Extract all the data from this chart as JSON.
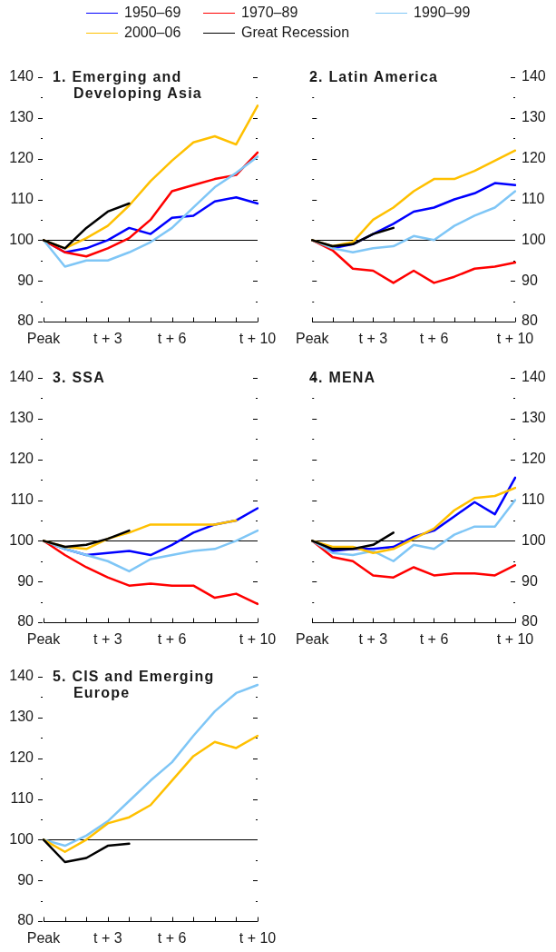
{
  "chart_data": [
    {
      "type": "line",
      "title": "1. Emerging and Developing Asia",
      "categories": [
        "Peak",
        null,
        null,
        "t + 3",
        null,
        null,
        "t + 6",
        null,
        null,
        null,
        "t + 10"
      ],
      "ylim": [
        80,
        140
      ],
      "yticks": [
        80,
        {
          "value": 85,
          "label": null
        },
        90,
        {
          "value": 95,
          "label": null
        },
        100,
        {
          "value": 105,
          "label": null
        },
        110,
        {
          "value": 115,
          "label": null
        },
        120,
        {
          "value": 125,
          "label": null
        },
        130,
        {
          "value": 135,
          "label": null
        },
        140
      ],
      "ref_lines": [
        {
          "axis": "y",
          "value": 100
        }
      ],
      "legend": "top",
      "series": [
        {
          "name": "1950–69",
          "color": "#0000ff",
          "values": [
            100,
            97,
            98,
            100,
            103,
            101.5,
            105.5,
            106,
            109.5,
            110.5,
            109
          ]
        },
        {
          "name": "1970–89",
          "color": "#ff0000",
          "values": [
            100,
            97,
            96,
            98,
            100.5,
            105,
            112,
            113.5,
            115,
            116,
            121.5
          ]
        },
        {
          "name": "1990–99",
          "color": "#7fc6f6",
          "values": [
            100,
            93.5,
            95,
            95,
            97,
            99.5,
            103,
            108,
            113,
            116.5,
            120.5
          ]
        },
        {
          "name": "2000–06",
          "color": "#ffc000",
          "values": [
            100,
            98,
            100.5,
            103.5,
            108.5,
            114.5,
            119.5,
            124,
            125.5,
            123.5,
            133
          ]
        },
        {
          "name": "Great Recession",
          "color": "#000000",
          "values": [
            100,
            98,
            103,
            107,
            109,
            null,
            null,
            null,
            null,
            null,
            null
          ]
        }
      ]
    },
    {
      "type": "line",
      "title": "2. Latin America",
      "categories": [
        "Peak",
        null,
        null,
        "t + 3",
        null,
        null,
        "t + 6",
        null,
        null,
        null,
        "t + 10"
      ],
      "ylim": [
        80,
        140
      ],
      "yticks": [
        80,
        {
          "value": 85,
          "label": null
        },
        90,
        {
          "value": 95,
          "label": null
        },
        100,
        {
          "value": 105,
          "label": null
        },
        110,
        {
          "value": 115,
          "label": null
        },
        120,
        {
          "value": 125,
          "label": null
        },
        130,
        {
          "value": 135,
          "label": null
        },
        140
      ],
      "ref_lines": [
        {
          "axis": "y",
          "value": 100
        }
      ],
      "series": [
        {
          "name": "1950–69",
          "color": "#0000ff",
          "values": [
            100,
            98,
            99,
            101.5,
            104,
            107,
            108,
            110,
            111.5,
            114,
            113.5
          ]
        },
        {
          "name": "1970–89",
          "color": "#ff0000",
          "values": [
            100,
            97.5,
            93,
            92.5,
            89.5,
            92.5,
            89.5,
            91,
            93,
            93.5,
            94.5
          ]
        },
        {
          "name": "1990–99",
          "color": "#7fc6f6",
          "values": [
            100,
            98,
            97,
            98,
            98.5,
            101,
            100,
            103.5,
            106,
            108,
            112
          ]
        },
        {
          "name": "2000–06",
          "color": "#ffc000",
          "values": [
            100,
            98.5,
            99.5,
            105,
            108,
            112,
            115,
            115,
            117,
            119.5,
            122
          ]
        },
        {
          "name": "Great Recession",
          "color": "#000000",
          "values": [
            100,
            98.5,
            99,
            101.5,
            103,
            null,
            null,
            null,
            null,
            null,
            null
          ]
        }
      ]
    },
    {
      "type": "line",
      "title": "3. SSA",
      "categories": [
        "Peak",
        null,
        null,
        "t + 3",
        null,
        null,
        "t + 6",
        null,
        null,
        null,
        "t + 10"
      ],
      "ylim": [
        80,
        140
      ],
      "yticks": [
        80,
        {
          "value": 85,
          "label": null
        },
        90,
        {
          "value": 95,
          "label": null
        },
        100,
        {
          "value": 105,
          "label": null
        },
        110,
        {
          "value": 115,
          "label": null
        },
        120,
        {
          "value": 125,
          "label": null
        },
        130,
        {
          "value": 135,
          "label": null
        },
        140
      ],
      "ref_lines": [
        {
          "axis": "y",
          "value": 100
        }
      ],
      "series": [
        {
          "name": "1950–69",
          "color": "#0000ff",
          "values": [
            100,
            98,
            96.5,
            97,
            97.5,
            96.5,
            99,
            102,
            104,
            105,
            108
          ]
        },
        {
          "name": "1970–89",
          "color": "#ff0000",
          "values": [
            100,
            96.5,
            93.5,
            91,
            89,
            89.5,
            89,
            89,
            86,
            87,
            84.5
          ]
        },
        {
          "name": "1990–99",
          "color": "#7fc6f6",
          "values": [
            100,
            98,
            96.5,
            95,
            92.5,
            95.5,
            96.5,
            97.5,
            98,
            100,
            102.5
          ]
        },
        {
          "name": "2000–06",
          "color": "#ffc000",
          "values": [
            100,
            98.5,
            98,
            100.5,
            102,
            104,
            104,
            104,
            104,
            105,
            null
          ]
        },
        {
          "name": "Great Recession",
          "color": "#000000",
          "values": [
            100,
            98.5,
            99,
            100.5,
            102.5,
            null,
            null,
            null,
            null,
            null,
            null
          ]
        }
      ]
    },
    {
      "type": "line",
      "title": "4. MENA",
      "categories": [
        "Peak",
        null,
        null,
        "t + 3",
        null,
        null,
        "t + 6",
        null,
        null,
        null,
        "t + 10"
      ],
      "ylim": [
        80,
        140
      ],
      "yticks": [
        80,
        {
          "value": 85,
          "label": null
        },
        90,
        {
          "value": 95,
          "label": null
        },
        100,
        {
          "value": 105,
          "label": null
        },
        110,
        {
          "value": 115,
          "label": null
        },
        120,
        {
          "value": 125,
          "label": null
        },
        130,
        {
          "value": 135,
          "label": null
        },
        140
      ],
      "ref_lines": [
        {
          "axis": "y",
          "value": 100
        }
      ],
      "series": [
        {
          "name": "1950–69",
          "color": "#0000ff",
          "values": [
            100,
            97.5,
            98,
            98,
            98.5,
            101,
            102.5,
            106,
            109.5,
            106.5,
            115.5
          ]
        },
        {
          "name": "1970–89",
          "color": "#ff0000",
          "values": [
            100,
            96,
            95,
            91.5,
            91,
            93.5,
            91.5,
            92,
            92,
            91.5,
            94
          ]
        },
        {
          "name": "1990–99",
          "color": "#7fc6f6",
          "values": [
            100,
            97,
            96.5,
            97.5,
            95,
            99,
            98,
            101.5,
            103.5,
            103.5,
            110
          ]
        },
        {
          "name": "2000–06",
          "color": "#ffc000",
          "values": [
            100,
            98.5,
            98.5,
            97,
            98,
            100.5,
            103,
            107.5,
            110.5,
            111,
            113
          ]
        },
        {
          "name": "Great Recession",
          "color": "#000000",
          "values": [
            100,
            98,
            98,
            99,
            102,
            null,
            null,
            null,
            null,
            null,
            null
          ]
        }
      ]
    },
    {
      "type": "line",
      "title": "5. CIS and Emerging Europe",
      "categories": [
        "Peak",
        null,
        null,
        "t + 3",
        null,
        null,
        "t + 6",
        null,
        null,
        null,
        "t + 10"
      ],
      "ylim": [
        80,
        140
      ],
      "yticks": [
        80,
        {
          "value": 85,
          "label": null
        },
        90,
        {
          "value": 95,
          "label": null
        },
        100,
        {
          "value": 105,
          "label": null
        },
        110,
        {
          "value": 115,
          "label": null
        },
        120,
        {
          "value": 125,
          "label": null
        },
        130,
        {
          "value": 135,
          "label": null
        },
        140
      ],
      "ref_lines": [
        {
          "axis": "y",
          "value": 100
        }
      ],
      "series": [
        {
          "name": "1990–99",
          "color": "#7fc6f6",
          "values": [
            100,
            98.5,
            101,
            104.5,
            109.5,
            114.5,
            119,
            125.5,
            131.5,
            136,
            138
          ]
        },
        {
          "name": "2000–06",
          "color": "#ffc000",
          "values": [
            100,
            97,
            100,
            104,
            105.5,
            108.5,
            114.5,
            120.5,
            124,
            122.5,
            125.5
          ]
        },
        {
          "name": "Great Recession",
          "color": "#000000",
          "values": [
            100,
            94.5,
            95.5,
            98.5,
            99,
            null,
            null,
            null,
            null,
            null,
            null
          ]
        }
      ]
    }
  ]
}
